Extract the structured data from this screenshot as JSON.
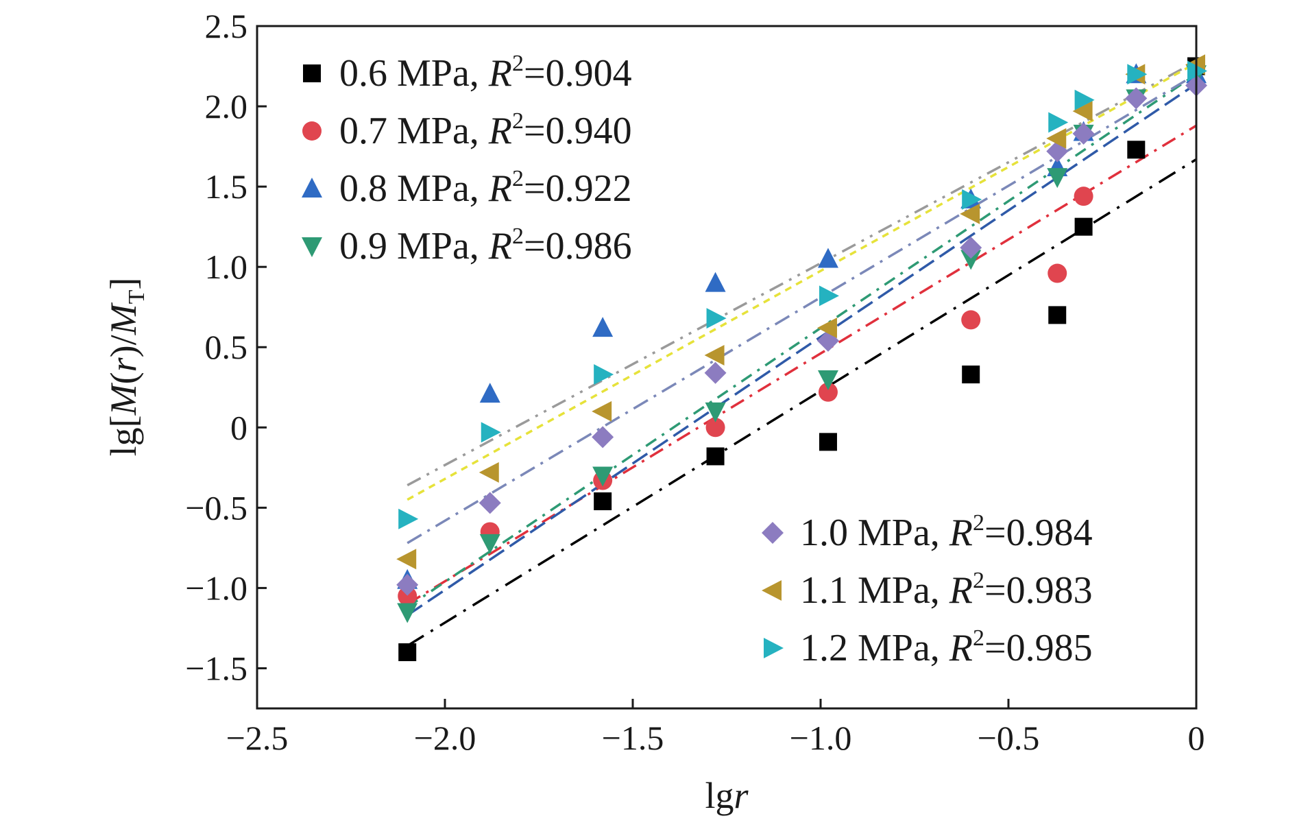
{
  "chart_data": {
    "type": "scatter",
    "xlabel": {
      "pre": "lg",
      "var": "r"
    },
    "ylabel": {
      "pre": "lg[",
      "m": "M",
      "r_open": "(",
      "r": "r",
      "r_close": ")/",
      "m2": "M",
      "sub": "T",
      "post": "]"
    },
    "xlim": [
      -2.5,
      0
    ],
    "ylim": [
      -1.75,
      2.5
    ],
    "x_ticks": [
      -2.5,
      -2.0,
      -1.5,
      -1.0,
      -0.5,
      0
    ],
    "x_tick_labels": [
      "−2.5",
      "−2.0",
      "−1.5",
      "−1.0",
      "−0.5",
      "0"
    ],
    "y_ticks": [
      2.5,
      2.0,
      1.5,
      1.0,
      0.5,
      0,
      -0.5,
      -1.0,
      -1.5
    ],
    "y_tick_labels": [
      "2.5",
      "2.0",
      "1.5",
      "1.0",
      "0.5",
      "0",
      "−0.5",
      "−1.0",
      "−1.5"
    ],
    "grid": false,
    "x": [
      -2.1,
      -1.88,
      -1.58,
      -1.28,
      -0.98,
      -0.6,
      -0.37,
      -0.3,
      -0.16,
      0
    ],
    "series": [
      {
        "label": "0.6 MPa",
        "r2": "0.904",
        "marker": "square",
        "color": "#000000",
        "line_color": "#000000",
        "dash": "28 12 4 12",
        "y": [
          -1.4,
          null,
          -0.46,
          -0.18,
          -0.09,
          0.33,
          0.7,
          1.25,
          1.73,
          2.25
        ],
        "fit": {
          "x0": -2.1,
          "y0": -1.36,
          "x1": 0,
          "y1": 1.67
        }
      },
      {
        "label": "0.7 MPa",
        "r2": "0.940",
        "marker": "circle",
        "color": "#e0454f",
        "line_color": "#e0303c",
        "dash": "22 10 4 10",
        "y": [
          -1.05,
          -0.65,
          -0.33,
          0.0,
          0.22,
          0.67,
          0.96,
          1.44,
          null,
          null
        ],
        "fit": {
          "x0": -2.1,
          "y0": -1.1,
          "x1": 0,
          "y1": 1.88
        }
      },
      {
        "label": "0.8 MPa",
        "r2": "0.922",
        "marker": "triangle-up",
        "color": "#2f6bc4",
        "line_color": "#2f5aa8",
        "dash": "26 10",
        "y": [
          -0.95,
          0.21,
          0.62,
          0.9,
          1.05,
          1.42,
          1.62,
          1.84,
          2.2,
          2.2
        ],
        "fit": {
          "x0": -2.1,
          "y0": -1.17,
          "x1": 0,
          "y1": 2.14
        }
      },
      {
        "label": "0.9 MPa",
        "r2": "0.986",
        "marker": "triangle-down",
        "color": "#2e9a74",
        "line_color": "#2e9a74",
        "dash": "18 10 4 10",
        "y": [
          -1.15,
          -0.72,
          -0.3,
          0.1,
          0.3,
          1.05,
          1.56,
          1.83,
          2.05,
          2.2
        ],
        "fit": {
          "x0": -2.1,
          "y0": -1.12,
          "x1": 0,
          "y1": 2.2
        }
      },
      {
        "label": "1.0 MPa",
        "r2": "0.984",
        "marker": "diamond",
        "color": "#8c7cc0",
        "line_color": "#7b88b8",
        "dash": "24 10 4 10",
        "y": [
          -0.98,
          -0.47,
          -0.06,
          0.34,
          0.54,
          1.12,
          1.72,
          1.83,
          2.05,
          2.13
        ],
        "fit": {
          "x0": -2.1,
          "y0": -0.72,
          "x1": 0,
          "y1": 2.2
        }
      },
      {
        "label": "1.1 MPa",
        "r2": "0.983",
        "marker": "triangle-left",
        "color": "#b8952e",
        "line_color": "#9a9a9a",
        "dash": "22 10 4 10 4 10",
        "y": [
          -0.82,
          -0.28,
          0.1,
          0.45,
          0.62,
          1.33,
          1.8,
          1.97,
          2.2,
          2.26
        ],
        "fit": {
          "x0": -2.1,
          "y0": -0.36,
          "x1": 0,
          "y1": 2.28
        }
      },
      {
        "label": "1.2 MPa",
        "r2": "0.985",
        "marker": "triangle-right",
        "color": "#25b2c0",
        "line_color": "#e6e23a",
        "dash": "10 8",
        "y": [
          -0.57,
          -0.03,
          0.33,
          0.68,
          0.82,
          1.42,
          1.9,
          2.04,
          2.2,
          2.22
        ],
        "fit": {
          "x0": -2.1,
          "y0": -0.45,
          "x1": 0,
          "y1": 2.27
        }
      }
    ],
    "legend_top_left": [
      0,
      1,
      2,
      3
    ],
    "legend_bottom_right": [
      4,
      5,
      6
    ],
    "r2_label": "R",
    "r2_sup": "2"
  }
}
